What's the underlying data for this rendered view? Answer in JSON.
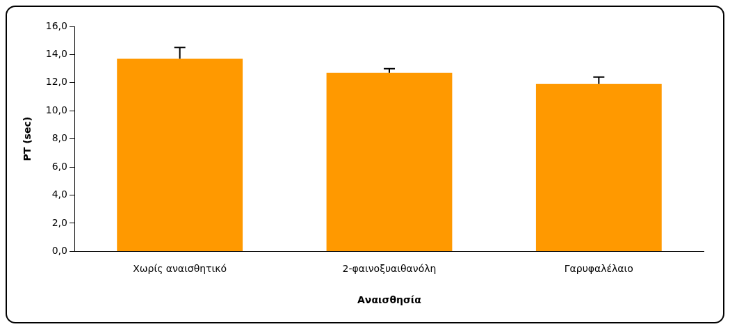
{
  "chart_data": {
    "type": "bar",
    "xlabel": "Αναισθησία",
    "ylabel": "PT (sec)",
    "categories": [
      "Χωρίς αναισθητικό",
      "2-φαινοξυαιθανόλη",
      "Γαρυφαλέλαιο"
    ],
    "values": [
      13.7,
      12.7,
      11.9
    ],
    "color": "#ff9900",
    "errors": [
      [
        13.7,
        14.5
      ],
      [
        12.7,
        13.0
      ],
      [
        11.9,
        12.4
      ]
    ],
    "ylim": [
      0,
      16
    ],
    "yticks": [
      {
        "value": 0,
        "label": "0,0"
      },
      {
        "value": 2,
        "label": "2,0"
      },
      {
        "value": 4,
        "label": "4,0"
      },
      {
        "value": 6,
        "label": "6,0"
      },
      {
        "value": 8,
        "label": "8,0"
      },
      {
        "value": 10,
        "label": "10,0"
      },
      {
        "value": 12,
        "label": "12,0"
      },
      {
        "value": 14,
        "label": "14,0"
      },
      {
        "value": 16,
        "label": "16,0"
      }
    ],
    "grid": false,
    "legend": false
  }
}
